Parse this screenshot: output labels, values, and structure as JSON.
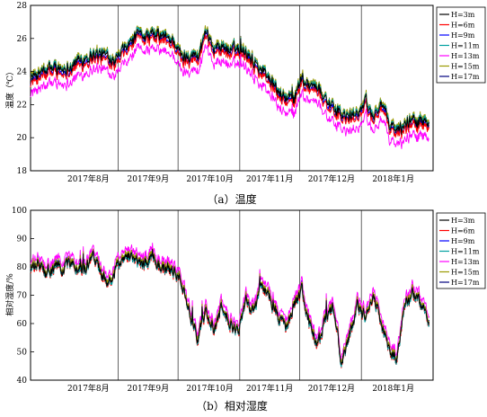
{
  "chart_data": [
    {
      "type": "line",
      "caption": "（a）温度",
      "ylabel": "温度（℃）",
      "ylim": [
        18,
        28
      ],
      "yticks": [
        18,
        20,
        22,
        24,
        26,
        28
      ],
      "xlim": [
        "2017-07-18",
        "2018-02-05"
      ],
      "month_labels": [
        {
          "label": "2017年8月",
          "date": "2017-08-16"
        },
        {
          "label": "2017年9月",
          "date": "2017-09-15"
        },
        {
          "label": "2017年10月",
          "date": "2017-10-16"
        },
        {
          "label": "2017年11月",
          "date": "2017-11-15"
        },
        {
          "label": "2017年12月",
          "date": "2017-12-16"
        },
        {
          "label": "2018年1月",
          "date": "2018-01-16"
        }
      ],
      "gridlines_x": [
        "2017-08-31",
        "2017-09-30",
        "2017-10-31",
        "2017-11-30",
        "2017-12-31"
      ],
      "legend_position": "top-right",
      "series_offsets": [
        0,
        -0.3,
        -0.2,
        0.1,
        -0.9,
        0.2,
        0.1
      ],
      "series": [
        {
          "name": "H=3m",
          "color": "#000000"
        },
        {
          "name": "H=6m",
          "color": "#ff0000"
        },
        {
          "name": "H=9m",
          "color": "#0000ff"
        },
        {
          "name": "H=11m",
          "color": "#00a0a0"
        },
        {
          "name": "H=13m",
          "color": "#ff00ff"
        },
        {
          "name": "H=15m",
          "color": "#9a9a00"
        },
        {
          "name": "H=17m",
          "color": "#00007f"
        }
      ],
      "base": {
        "x": [
          "2017-07-18",
          "2017-07-22",
          "2017-07-26",
          "2017-07-30",
          "2017-08-03",
          "2017-08-07",
          "2017-08-11",
          "2017-08-15",
          "2017-08-19",
          "2017-08-23",
          "2017-08-27",
          "2017-08-31",
          "2017-09-04",
          "2017-09-08",
          "2017-09-12",
          "2017-09-16",
          "2017-09-20",
          "2017-09-24",
          "2017-09-28",
          "2017-10-02",
          "2017-10-06",
          "2017-10-10",
          "2017-10-14",
          "2017-10-18",
          "2017-10-22",
          "2017-10-26",
          "2017-10-30",
          "2017-11-03",
          "2017-11-07",
          "2017-11-11",
          "2017-11-15",
          "2017-11-19",
          "2017-11-23",
          "2017-11-27",
          "2017-12-01",
          "2017-12-05",
          "2017-12-09",
          "2017-12-13",
          "2017-12-17",
          "2017-12-21",
          "2017-12-25",
          "2017-12-29",
          "2018-01-02",
          "2018-01-06",
          "2018-01-10",
          "2018-01-14",
          "2018-01-18",
          "2018-01-22",
          "2018-01-26",
          "2018-01-30",
          "2018-02-03"
        ],
        "y": [
          23.6,
          23.8,
          24.0,
          24.3,
          24.1,
          24.4,
          24.6,
          24.9,
          25.1,
          25.0,
          24.9,
          24.8,
          25.4,
          26.0,
          26.3,
          26.1,
          26.2,
          26.0,
          25.9,
          24.8,
          25.1,
          24.9,
          26.1,
          25.4,
          25.6,
          25.2,
          25.4,
          25.3,
          24.6,
          24.1,
          23.6,
          22.8,
          22.4,
          22.2,
          23.6,
          23.2,
          23.1,
          22.4,
          21.7,
          21.4,
          21.2,
          21.6,
          22.0,
          21.3,
          22.1,
          20.8,
          20.4,
          20.8,
          21.2,
          21.0,
          20.7
        ]
      }
    },
    {
      "type": "line",
      "caption": "（b）相对湿度",
      "ylabel": "相对湿度/%",
      "ylim": [
        40,
        100
      ],
      "yticks": [
        40,
        50,
        60,
        70,
        80,
        90,
        100
      ],
      "xlim": [
        "2017-07-18",
        "2018-02-05"
      ],
      "month_labels": [
        {
          "label": "2017年8月",
          "date": "2017-08-16"
        },
        {
          "label": "2017年9月",
          "date": "2017-09-15"
        },
        {
          "label": "2017年10月",
          "date": "2017-10-16"
        },
        {
          "label": "2017年11月",
          "date": "2017-11-15"
        },
        {
          "label": "2017年12月",
          "date": "2017-12-16"
        },
        {
          "label": "2018年1月",
          "date": "2018-01-16"
        }
      ],
      "gridlines_x": [
        "2017-08-31",
        "2017-09-30",
        "2017-10-31",
        "2017-11-30",
        "2017-12-31"
      ],
      "legend_position": "top-right",
      "series_offsets": [
        0,
        -0.8,
        0.6,
        -0.5,
        2.5,
        0.8,
        0.3
      ],
      "series": [
        {
          "name": "H=3m",
          "color": "#000000"
        },
        {
          "name": "H=6m",
          "color": "#ff0000"
        },
        {
          "name": "H=9m",
          "color": "#0000ff"
        },
        {
          "name": "H=11m",
          "color": "#00a0a0"
        },
        {
          "name": "H=13m",
          "color": "#ff00ff"
        },
        {
          "name": "H=15m",
          "color": "#9a9a00"
        },
        {
          "name": "H=17m",
          "color": "#00007f"
        }
      ],
      "base": {
        "x": [
          "2017-07-18",
          "2017-07-22",
          "2017-07-26",
          "2017-07-30",
          "2017-08-03",
          "2017-08-07",
          "2017-08-11",
          "2017-08-15",
          "2017-08-19",
          "2017-08-23",
          "2017-08-27",
          "2017-08-31",
          "2017-09-04",
          "2017-09-08",
          "2017-09-12",
          "2017-09-16",
          "2017-09-20",
          "2017-09-24",
          "2017-09-28",
          "2017-10-02",
          "2017-10-06",
          "2017-10-10",
          "2017-10-14",
          "2017-10-18",
          "2017-10-22",
          "2017-10-26",
          "2017-10-30",
          "2017-11-03",
          "2017-11-07",
          "2017-11-11",
          "2017-11-15",
          "2017-11-19",
          "2017-11-23",
          "2017-11-27",
          "2017-12-01",
          "2017-12-05",
          "2017-12-09",
          "2017-12-13",
          "2017-12-17",
          "2017-12-21",
          "2017-12-25",
          "2017-12-29",
          "2018-01-02",
          "2018-01-06",
          "2018-01-10",
          "2018-01-14",
          "2018-01-18",
          "2018-01-22",
          "2018-01-26",
          "2018-01-30",
          "2018-02-03"
        ],
        "y": [
          79,
          81,
          77,
          80,
          79,
          82,
          78,
          80,
          83,
          78,
          75,
          81,
          85,
          83,
          80,
          84,
          81,
          79,
          78,
          75,
          62,
          55,
          64,
          58,
          66,
          60,
          57,
          69,
          64,
          73,
          70,
          63,
          57,
          66,
          72,
          59,
          52,
          62,
          66,
          46,
          55,
          67,
          63,
          70,
          60,
          51,
          48,
          68,
          71,
          67,
          59
        ]
      }
    }
  ]
}
